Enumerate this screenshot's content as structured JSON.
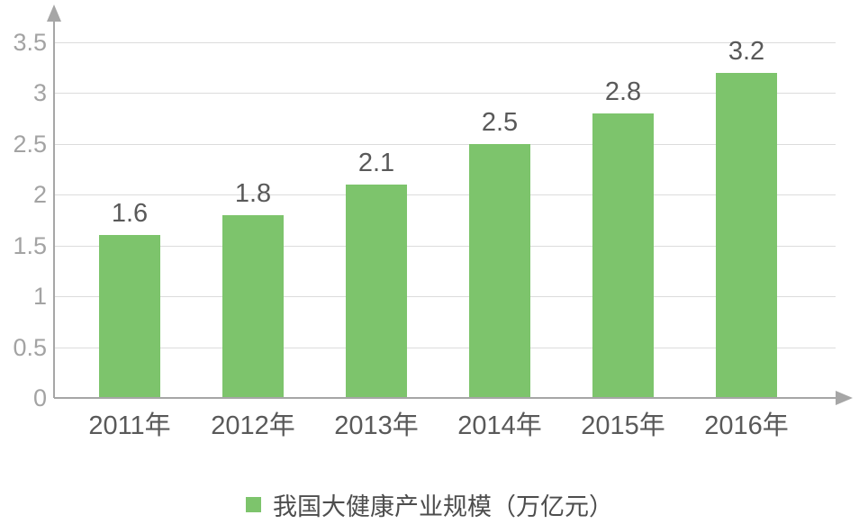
{
  "chart_data": {
    "type": "bar",
    "categories": [
      "2011年",
      "2012年",
      "2013年",
      "2014年",
      "2015年",
      "2016年"
    ],
    "values": [
      1.6,
      1.8,
      2.1,
      2.5,
      2.8,
      3.2
    ],
    "value_labels": [
      "1.6",
      "1.8",
      "2.1",
      "2.5",
      "2.8",
      "3.2"
    ],
    "title": "",
    "xlabel": "",
    "ylabel": "",
    "ylim": [
      0,
      3.5
    ],
    "ytick_step": 0.5,
    "ytick_labels": [
      "0",
      "0.5",
      "1",
      "1.5",
      "2",
      "2.5",
      "3",
      "3.5"
    ],
    "grid": true,
    "legend": "我国大健康产业规模（万亿元）",
    "legend_position": "bottom",
    "colors": {
      "bar": "#7dc46c",
      "grid": "#dcdcdc",
      "axis": "#a6a6a6",
      "ytick_label": "#a3a3a3",
      "xtick_label": "#595959",
      "value_label": "#595959",
      "legend_text": "#4d4d4d",
      "background": "#ffffff"
    }
  }
}
